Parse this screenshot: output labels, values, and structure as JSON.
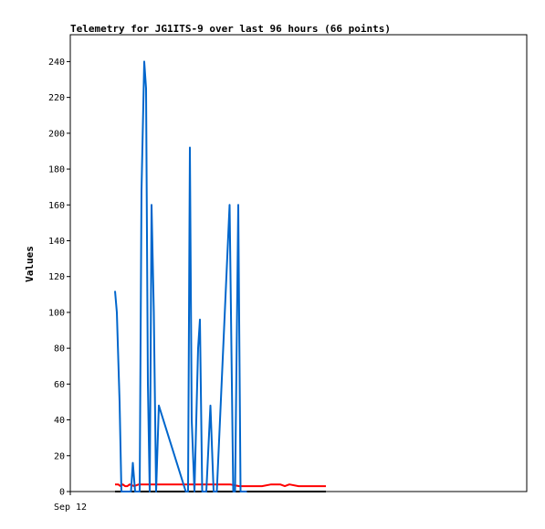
{
  "chart_data": {
    "type": "line",
    "title": "Telemetry for JG1ITS-9 over last 96 hours (66 points)",
    "ylabel": "Values",
    "xlabel": "",
    "x_tick_labels": [
      "Sep 12"
    ],
    "ylim": [
      0,
      255
    ],
    "y_ticks": [
      0,
      20,
      40,
      60,
      80,
      100,
      120,
      140,
      160,
      180,
      200,
      220,
      240
    ],
    "xlim": [
      0,
      1
    ],
    "grid": false,
    "series": [
      {
        "color": "#0066cc",
        "x": [
          0.098,
          0.102,
          0.108,
          0.112,
          0.133,
          0.137,
          0.142,
          0.152,
          0.156,
          0.162,
          0.166,
          0.17,
          0.174,
          0.176,
          0.178,
          0.183,
          0.188,
          0.194,
          0.253,
          0.258,
          0.262,
          0.266,
          0.272,
          0.28,
          0.284,
          0.289,
          0.293,
          0.298,
          0.307,
          0.314,
          0.318,
          0.321,
          0.349,
          0.357,
          0.361,
          0.368,
          0.373,
          0.378,
          0.382,
          0.387
        ],
        "values": [
          112,
          100,
          50,
          0,
          0,
          16,
          0,
          0,
          168,
          240,
          225,
          60,
          0,
          75,
          160,
          100,
          0,
          48,
          0,
          0,
          192,
          40,
          0,
          80,
          96,
          0,
          0,
          0,
          48,
          0,
          0,
          0,
          160,
          0,
          0,
          160,
          0,
          0,
          0,
          0
        ]
      },
      {
        "color": "#ff0000",
        "x": [
          0.098,
          0.105,
          0.11,
          0.115,
          0.12,
          0.125,
          0.13,
          0.14,
          0.15,
          0.16,
          0.2,
          0.25,
          0.3,
          0.32,
          0.345,
          0.35,
          0.37,
          0.39,
          0.4,
          0.42,
          0.44,
          0.46,
          0.47,
          0.48,
          0.5,
          0.52,
          0.56
        ],
        "values": [
          4,
          4,
          3,
          4,
          3,
          3,
          4,
          3,
          4,
          4,
          4,
          4,
          4,
          4,
          4,
          4,
          3,
          3,
          3,
          3,
          4,
          4,
          3,
          4,
          3,
          3,
          3
        ]
      },
      {
        "color": "#000000",
        "x": [
          0.098,
          0.56
        ],
        "values": [
          0,
          0
        ]
      }
    ]
  }
}
